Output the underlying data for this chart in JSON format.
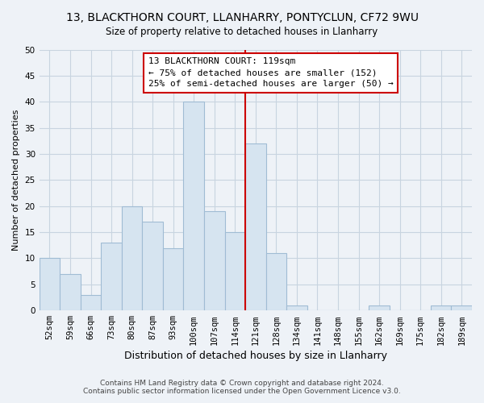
{
  "title": "13, BLACKTHORN COURT, LLANHARRY, PONTYCLUN, CF72 9WU",
  "subtitle": "Size of property relative to detached houses in Llanharry",
  "xlabel": "Distribution of detached houses by size in Llanharry",
  "ylabel": "Number of detached properties",
  "bar_labels": [
    "52sqm",
    "59sqm",
    "66sqm",
    "73sqm",
    "80sqm",
    "87sqm",
    "93sqm",
    "100sqm",
    "107sqm",
    "114sqm",
    "121sqm",
    "128sqm",
    "134sqm",
    "141sqm",
    "148sqm",
    "155sqm",
    "162sqm",
    "169sqm",
    "175sqm",
    "182sqm",
    "189sqm"
  ],
  "bar_values": [
    10,
    7,
    3,
    13,
    20,
    17,
    12,
    40,
    19,
    15,
    32,
    11,
    1,
    0,
    0,
    0,
    1,
    0,
    0,
    1,
    1
  ],
  "bar_fill": "#d6e4f0",
  "bar_edge": "#a0bcd4",
  "vline_x_idx": 10,
  "vline_color": "#cc0000",
  "annotation_title": "13 BLACKTHORN COURT: 119sqm",
  "annotation_line1": "← 75% of detached houses are smaller (152)",
  "annotation_line2": "25% of semi-detached houses are larger (50) →",
  "annotation_box_facecolor": "#ffffff",
  "annotation_box_edgecolor": "#cc0000",
  "ylim": [
    0,
    50
  ],
  "yticks": [
    0,
    5,
    10,
    15,
    20,
    25,
    30,
    35,
    40,
    45,
    50
  ],
  "footnote1": "Contains HM Land Registry data © Crown copyright and database right 2024.",
  "footnote2": "Contains public sector information licensed under the Open Government Licence v3.0.",
  "background_color": "#eef2f7",
  "grid_color": "#c8d4e0",
  "title_fontsize": 10,
  "subtitle_fontsize": 8.5,
  "ylabel_fontsize": 8,
  "xlabel_fontsize": 9,
  "tick_fontsize": 7.5,
  "annot_fontsize": 8,
  "footnote_fontsize": 6.5
}
